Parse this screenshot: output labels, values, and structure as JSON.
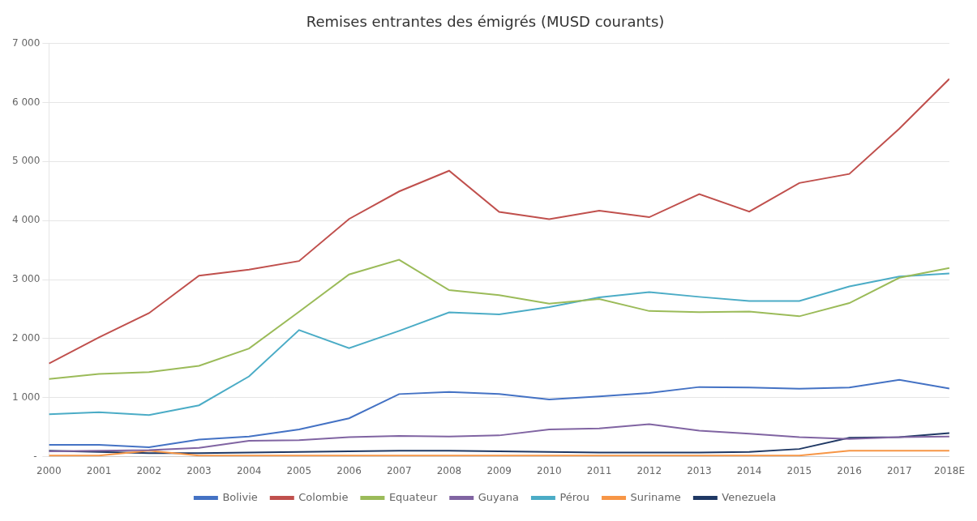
{
  "chart_data": {
    "type": "line",
    "title": "Remises entrantes des émigrés (MUSD courants)",
    "categories": [
      "2000",
      "2001",
      "2002",
      "2003",
      "2004",
      "2005",
      "2006",
      "2007",
      "2008",
      "2009",
      "2010",
      "2011",
      "2012",
      "2013",
      "2014",
      "2015",
      "2016",
      "2017",
      "2018E"
    ],
    "series": [
      {
        "name": "Bolivie",
        "color": "#4472C4",
        "values": [
          200,
          200,
          160,
          290,
          340,
          460,
          650,
          1060,
          1097,
          1060,
          970,
          1020,
          1080,
          1180,
          1170,
          1150,
          1170,
          1300,
          1155
        ]
      },
      {
        "name": "Colombie",
        "color": "#C0504D",
        "values": [
          1578,
          2021,
          2431,
          3067,
          3170,
          3314,
          4027,
          4493,
          4843,
          4145,
          4023,
          4168,
          4056,
          4446,
          4152,
          4636,
          4789,
          5557,
          6400
        ]
      },
      {
        "name": "Equateur",
        "color": "#9BBB59",
        "values": [
          1317,
          1402,
          1432,
          1540,
          1832,
          2454,
          3087,
          3335,
          2822,
          2735,
          2591,
          2672,
          2467,
          2449,
          2459,
          2378,
          2602,
          3031,
          3196
        ]
      },
      {
        "name": "Guyana",
        "color": "#8064A2",
        "values": [
          90,
          100,
          110,
          150,
          270,
          280,
          330,
          350,
          340,
          360,
          460,
          480,
          550,
          440,
          390,
          330,
          300,
          330,
          340
        ]
      },
      {
        "name": "Pérou",
        "color": "#4BACC6",
        "values": [
          718,
          753,
          705,
          870,
          1360,
          2145,
          1837,
          2131,
          2444,
          2409,
          2534,
          2697,
          2788,
          2707,
          2637,
          2636,
          2884,
          3051,
          3102
        ]
      },
      {
        "name": "Suriname",
        "color": "#F79646",
        "values": [
          20,
          20,
          100,
          20,
          20,
          20,
          20,
          20,
          20,
          20,
          20,
          20,
          20,
          20,
          20,
          20,
          100,
          100,
          100
        ]
      },
      {
        "name": "Venezuela",
        "color": "#1F3864",
        "values": [
          100,
          80,
          60,
          60,
          70,
          80,
          90,
          100,
          100,
          90,
          80,
          70,
          70,
          70,
          80,
          130,
          320,
          330,
          400
        ]
      }
    ],
    "ylim": [
      0,
      7000
    ],
    "yticks": [
      {
        "value": 0,
        "label": " - "
      },
      {
        "value": 1000,
        "label": "1 000"
      },
      {
        "value": 2000,
        "label": "2 000"
      },
      {
        "value": 3000,
        "label": "3 000"
      },
      {
        "value": 4000,
        "label": "4 000"
      },
      {
        "value": 5000,
        "label": "5 000"
      },
      {
        "value": 6000,
        "label": "6 000"
      },
      {
        "value": 7000,
        "label": "7 000"
      }
    ],
    "grid": true,
    "legend": "bottom"
  }
}
